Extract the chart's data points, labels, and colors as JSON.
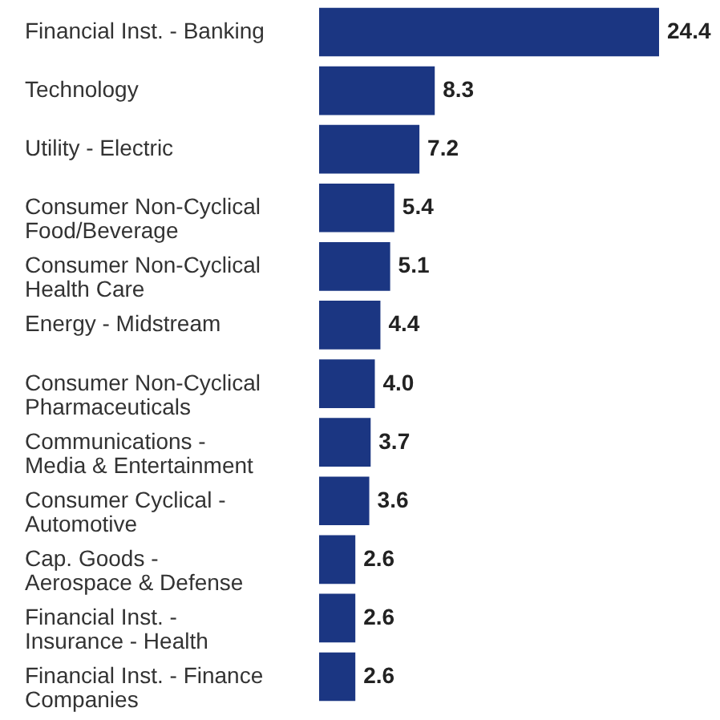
{
  "chart_data": {
    "type": "bar",
    "orientation": "horizontal",
    "color": "#1b3682",
    "value_labels": [
      "24.4",
      "8.3",
      "7.2",
      "5.4",
      "5.1",
      "4.4",
      "4.0",
      "3.7",
      "3.6",
      "2.6",
      "2.6",
      "2.6"
    ],
    "categories": [
      "Financial Inst. - Banking",
      "Technology",
      "Utility - Electric",
      "Consumer Non-Cyclical\nFood/Beverage",
      "Consumer Non-Cyclical\nHealth Care",
      "Energy - Midstream",
      "Consumer Non-Cyclical\nPharmaceuticals",
      "Communications -\nMedia & Entertainment",
      "Consumer Cyclical -\nAutomotive",
      "Cap. Goods -\nAerospace & Defense",
      "Financial Inst. -\nInsurance - Health",
      "Financial Inst. - Finance\nCompanies"
    ],
    "values": [
      24.4,
      8.3,
      7.2,
      5.4,
      5.1,
      4.4,
      4.0,
      3.7,
      3.6,
      2.6,
      2.6,
      2.6
    ]
  }
}
